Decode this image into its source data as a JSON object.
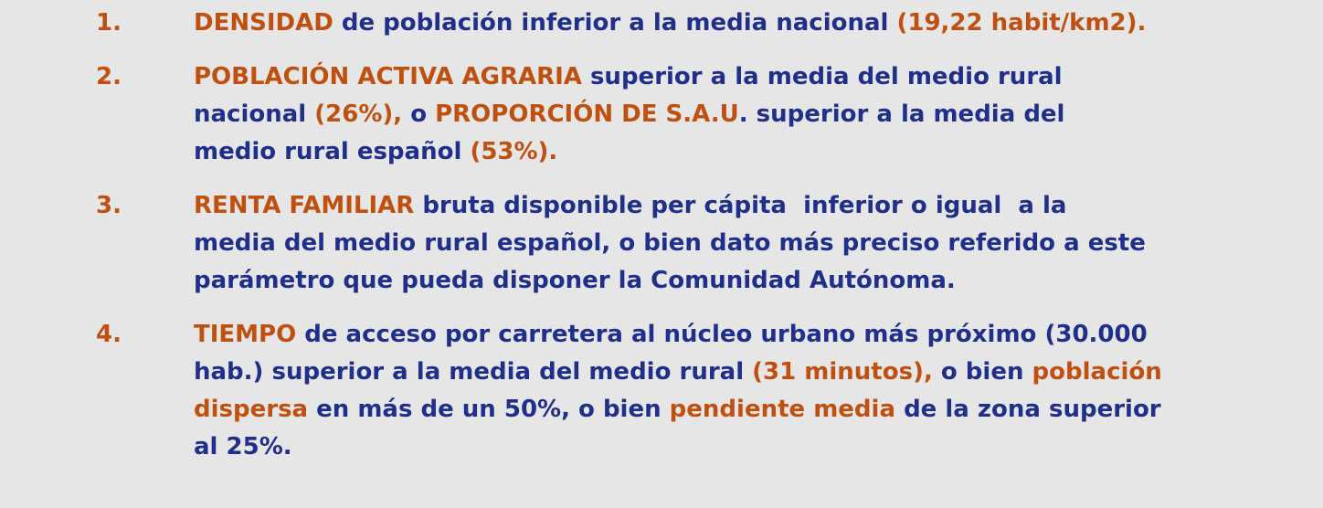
{
  "items": [
    {
      "number": "1.",
      "lines": [
        [
          {
            "text": "DENSIDAD",
            "color": "#c0500f"
          },
          {
            "text": " de población inferior a la media nacional ",
            "color": "#1f2f8a"
          },
          {
            "text": "(19,22 habit/km2).",
            "color": "#c0500f"
          }
        ]
      ]
    },
    {
      "number": "2.",
      "lines": [
        [
          {
            "text": "POBLACIÓN ACTIVA AGRARIA",
            "color": "#c0500f"
          },
          {
            "text": " superior a la media del medio rural",
            "color": "#1f2f8a"
          }
        ],
        [
          {
            "text": "nacional ",
            "color": "#1f2f8a"
          },
          {
            "text": "(26%),",
            "color": "#c0500f"
          },
          {
            "text": " o ",
            "color": "#1f2f8a"
          },
          {
            "text": "PROPORCIÓN DE S.A.U",
            "color": "#c0500f"
          },
          {
            "text": ". superior a la media del",
            "color": "#1f2f8a"
          }
        ],
        [
          {
            "text": "medio rural español ",
            "color": "#1f2f8a"
          },
          {
            "text": "(53%).",
            "color": "#c0500f"
          }
        ]
      ]
    },
    {
      "number": "3.",
      "lines": [
        [
          {
            "text": "RENTA FAMILIAR",
            "color": "#c0500f"
          },
          {
            "text": " bruta disponible per cápita  inferior o igual  a la",
            "color": "#1f2f8a"
          }
        ],
        [
          {
            "text": "media del medio rural español, o bien dato más preciso referido a este",
            "color": "#1f2f8a"
          }
        ],
        [
          {
            "text": "parámetro que pueda disponer la Comunidad Autónoma.",
            "color": "#1f2f8a"
          }
        ]
      ]
    },
    {
      "number": "4.",
      "lines": [
        [
          {
            "text": "TIEMPO",
            "color": "#c0500f"
          },
          {
            "text": " de acceso por carretera al núcleo urbano más próximo (30.000",
            "color": "#1f2f8a"
          }
        ],
        [
          {
            "text": "hab.) superior a la media del medio rural ",
            "color": "#1f2f8a"
          },
          {
            "text": "(31 minutos),",
            "color": "#c0500f"
          },
          {
            "text": " o bien ",
            "color": "#1f2f8a"
          },
          {
            "text": "población",
            "color": "#c0500f"
          }
        ],
        [
          {
            "text": "dispersa",
            "color": "#c0500f"
          },
          {
            "text": " en más de un 50%, o bien ",
            "color": "#1f2f8a"
          },
          {
            "text": "pendiente media",
            "color": "#c0500f"
          },
          {
            "text": " de la zona superior",
            "color": "#1f2f8a"
          }
        ],
        [
          {
            "text": "al 25%.",
            "color": "#1f2f8a"
          }
        ]
      ]
    }
  ]
}
